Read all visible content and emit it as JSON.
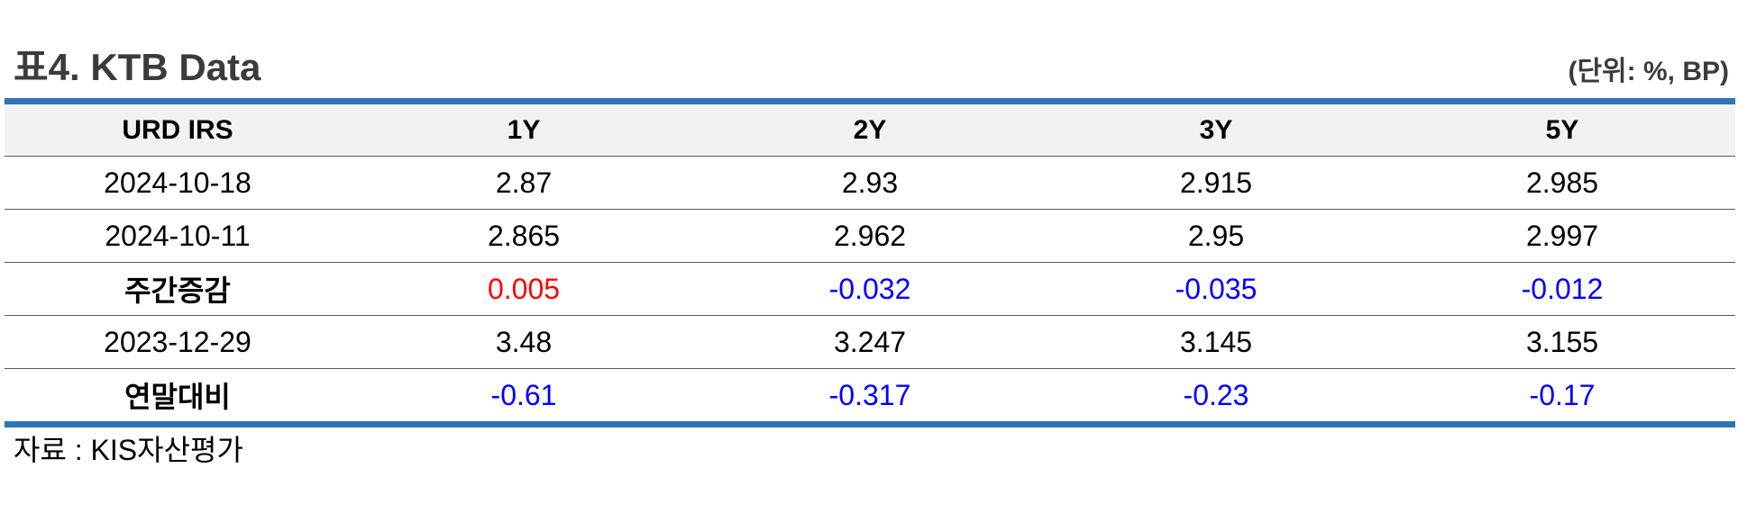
{
  "header": {
    "title": "표4. KTB Data",
    "unit": "(단위: %, BP)"
  },
  "table": {
    "columns": [
      "URD IRS",
      "1Y",
      "2Y",
      "3Y",
      "5Y"
    ],
    "rows": [
      {
        "label": "2024-10-18",
        "bold": false,
        "values": [
          "2.87",
          "2.93",
          "2.915",
          "2.985"
        ],
        "colors": [
          "#000000",
          "#000000",
          "#000000",
          "#000000"
        ]
      },
      {
        "label": "2024-10-11",
        "bold": false,
        "values": [
          "2.865",
          "2.962",
          "2.95",
          "2.997"
        ],
        "colors": [
          "#000000",
          "#000000",
          "#000000",
          "#000000"
        ]
      },
      {
        "label": "주간증감",
        "bold": true,
        "values": [
          "0.005",
          "-0.032",
          "-0.035",
          "-0.012"
        ],
        "colors": [
          "#ff0000",
          "#0000ff",
          "#0000ff",
          "#0000ff"
        ]
      },
      {
        "label": "2023-12-29",
        "bold": false,
        "values": [
          "3.48",
          "3.247",
          "3.145",
          "3.155"
        ],
        "colors": [
          "#000000",
          "#000000",
          "#000000",
          "#000000"
        ]
      },
      {
        "label": "연말대비",
        "bold": true,
        "values": [
          "-0.61",
          "-0.317",
          "-0.23",
          "-0.17"
        ],
        "colors": [
          "#0000ff",
          "#0000ff",
          "#0000ff",
          "#0000ff"
        ]
      }
    ]
  },
  "source": "자료 : KIS자산평가",
  "colors": {
    "rule": "#2e75b6",
    "header_bg": "#f2f2f2",
    "positive": "#ff0000",
    "negative": "#0000ff"
  }
}
